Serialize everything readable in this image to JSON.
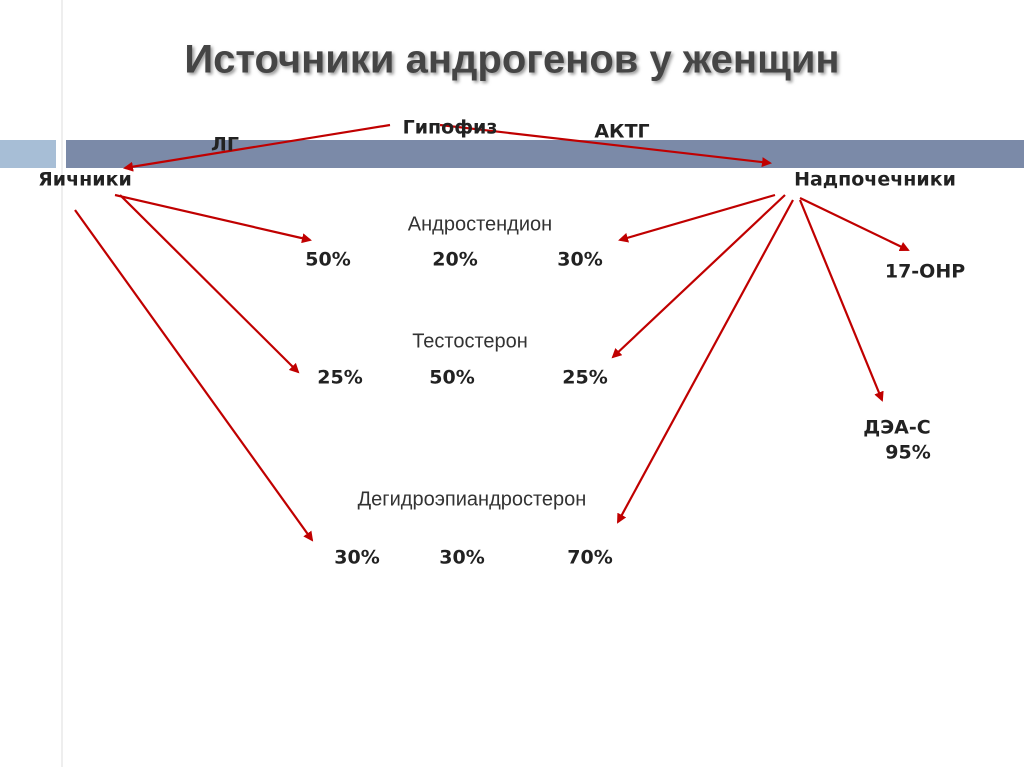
{
  "title": "Источники андрогенов у женщин",
  "diagram": {
    "source": "Гипофиз",
    "hormones": [
      "ЛГ",
      "АКТГ"
    ],
    "organs": [
      "Яичники",
      "Надпочечники"
    ],
    "products": [
      {
        "name": "Андростендион",
        "shares": [
          "50%",
          "20%",
          "30%"
        ]
      },
      {
        "name": "Тестостерон",
        "shares": [
          "25%",
          "50%",
          "25%"
        ]
      },
      {
        "name": "Дегидроэпиандростерон",
        "shares": [
          "30%",
          "30%",
          "70%"
        ]
      }
    ],
    "adrenal_products": [
      {
        "name": "17-ОНР"
      },
      {
        "name": "ДЭА-С",
        "share": "95%"
      }
    ]
  }
}
